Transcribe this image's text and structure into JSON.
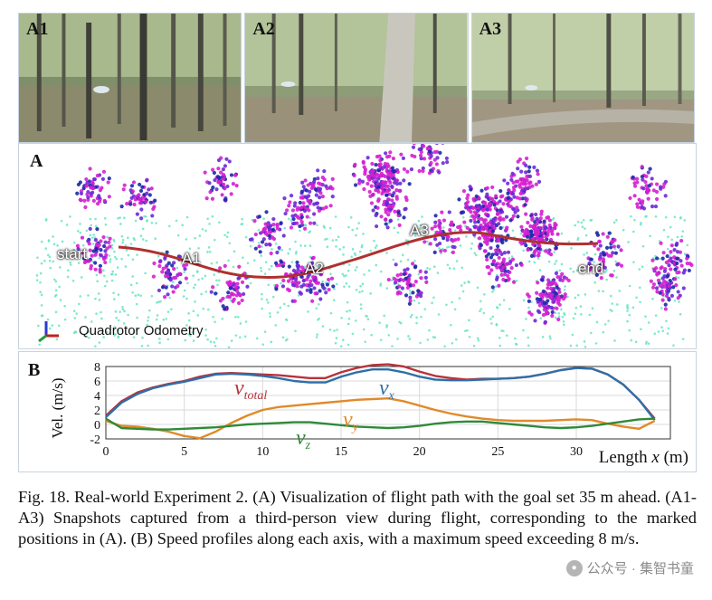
{
  "photos": [
    {
      "label": "A1"
    },
    {
      "label": "A2"
    },
    {
      "label": "A3"
    }
  ],
  "cloud": {
    "panel_label": "A",
    "markers": {
      "start": "start",
      "a1": "A1",
      "a2": "A2",
      "a3": "A3",
      "end": "end"
    },
    "odometry_label": "Quadrotor Odometry",
    "colors": {
      "magenta": "#d61fd0",
      "purple": "#6a2ad6",
      "cyan": "#5fe3c0",
      "blue": "#1a2aa6"
    }
  },
  "chart": {
    "panel_label": "B",
    "ylabel": "Vel. (m/s)",
    "xlabel_prefix": "Length ",
    "xlabel_var": "x",
    "xlabel_suffix": " (m)",
    "series_labels": {
      "total": {
        "main": "v",
        "sub": "total"
      },
      "x": {
        "main": "v",
        "sub": "x"
      },
      "y": {
        "main": "v",
        "sub": "y"
      },
      "z": {
        "main": "v",
        "sub": "z"
      }
    }
  },
  "chart_data": {
    "type": "line",
    "xlim": [
      0,
      36
    ],
    "ylim": [
      -2,
      8
    ],
    "xticks": [
      0,
      5,
      10,
      15,
      20,
      25,
      30
    ],
    "yticks": [
      -2,
      0,
      2,
      4,
      6,
      8
    ],
    "grid": true,
    "xlabel": "Length x (m)",
    "ylabel": "Vel. (m/s)",
    "series": [
      {
        "name": "v_total",
        "color": "#b8323a",
        "x": [
          0,
          1,
          2,
          3,
          4,
          5,
          6,
          7,
          8,
          9,
          10,
          11,
          12,
          13,
          14,
          15,
          16,
          17,
          18,
          19,
          20,
          21,
          22,
          23,
          24,
          25,
          26,
          27,
          28,
          29,
          30,
          31,
          32,
          33,
          34,
          35
        ],
        "values": [
          1.2,
          3.2,
          4.4,
          5.1,
          5.6,
          6.0,
          6.6,
          7.0,
          7.1,
          7.0,
          6.9,
          6.8,
          6.6,
          6.4,
          6.4,
          7.2,
          7.8,
          8.2,
          8.3,
          8.0,
          7.3,
          6.7,
          6.4,
          6.2,
          6.3,
          6.3,
          6.4,
          6.6,
          7.0,
          7.5,
          7.8,
          7.7,
          6.9,
          5.5,
          3.4,
          0.8
        ]
      },
      {
        "name": "v_x",
        "color": "#2f6fa7",
        "x": [
          0,
          1,
          2,
          3,
          4,
          5,
          6,
          7,
          8,
          9,
          10,
          11,
          12,
          13,
          14,
          15,
          16,
          17,
          18,
          19,
          20,
          21,
          22,
          23,
          24,
          25,
          26,
          27,
          28,
          29,
          30,
          31,
          32,
          33,
          34,
          35
        ],
        "values": [
          1.0,
          3.0,
          4.2,
          5.0,
          5.5,
          5.9,
          6.4,
          6.9,
          7.0,
          6.9,
          6.7,
          6.4,
          6.0,
          5.8,
          5.8,
          6.6,
          7.2,
          7.6,
          7.6,
          7.2,
          6.6,
          6.2,
          6.1,
          6.1,
          6.2,
          6.3,
          6.4,
          6.6,
          7.0,
          7.5,
          7.8,
          7.7,
          6.9,
          5.5,
          3.4,
          0.6
        ]
      },
      {
        "name": "v_y",
        "color": "#e08a2a",
        "x": [
          0,
          1,
          2,
          3,
          4,
          5,
          6,
          7,
          8,
          9,
          10,
          11,
          12,
          13,
          14,
          15,
          16,
          17,
          18,
          19,
          20,
          21,
          22,
          23,
          24,
          25,
          26,
          27,
          28,
          29,
          30,
          31,
          32,
          33,
          34,
          35
        ],
        "values": [
          0.5,
          -0.2,
          -0.3,
          -0.6,
          -1.0,
          -1.6,
          -1.9,
          -1.0,
          0.2,
          1.2,
          2.0,
          2.4,
          2.6,
          2.8,
          3.0,
          3.2,
          3.4,
          3.5,
          3.6,
          3.2,
          2.6,
          2.0,
          1.5,
          1.1,
          0.8,
          0.6,
          0.5,
          0.5,
          0.5,
          0.6,
          0.7,
          0.6,
          0.1,
          -0.3,
          -0.6,
          0.5
        ]
      },
      {
        "name": "v_z",
        "color": "#2f8a3a",
        "x": [
          0,
          1,
          2,
          3,
          4,
          5,
          6,
          7,
          8,
          9,
          10,
          11,
          12,
          13,
          14,
          15,
          16,
          17,
          18,
          19,
          20,
          21,
          22,
          23,
          24,
          25,
          26,
          27,
          28,
          29,
          30,
          31,
          32,
          33,
          34,
          35
        ],
        "values": [
          0.8,
          -0.5,
          -0.6,
          -0.7,
          -0.7,
          -0.6,
          -0.5,
          -0.4,
          -0.2,
          0.0,
          0.1,
          0.2,
          0.3,
          0.3,
          0.1,
          -0.1,
          -0.3,
          -0.4,
          -0.5,
          -0.4,
          -0.2,
          0.1,
          0.3,
          0.4,
          0.4,
          0.2,
          0.0,
          -0.2,
          -0.4,
          -0.5,
          -0.4,
          -0.2,
          0.1,
          0.4,
          0.7,
          0.8
        ]
      }
    ]
  },
  "caption": {
    "text": "Fig. 18. Real-world Experiment 2. (A) Visualization of flight path with the goal set 35 m ahead. (A1-A3) Snapshots captured from a third-person view during flight, corresponding to the marked positions in (A). (B) Speed profiles along each axis, with a maximum speed exceeding 8 m/s."
  },
  "watermark": {
    "icon": "wechat-icon",
    "text": "公众号 · 集智书童"
  }
}
